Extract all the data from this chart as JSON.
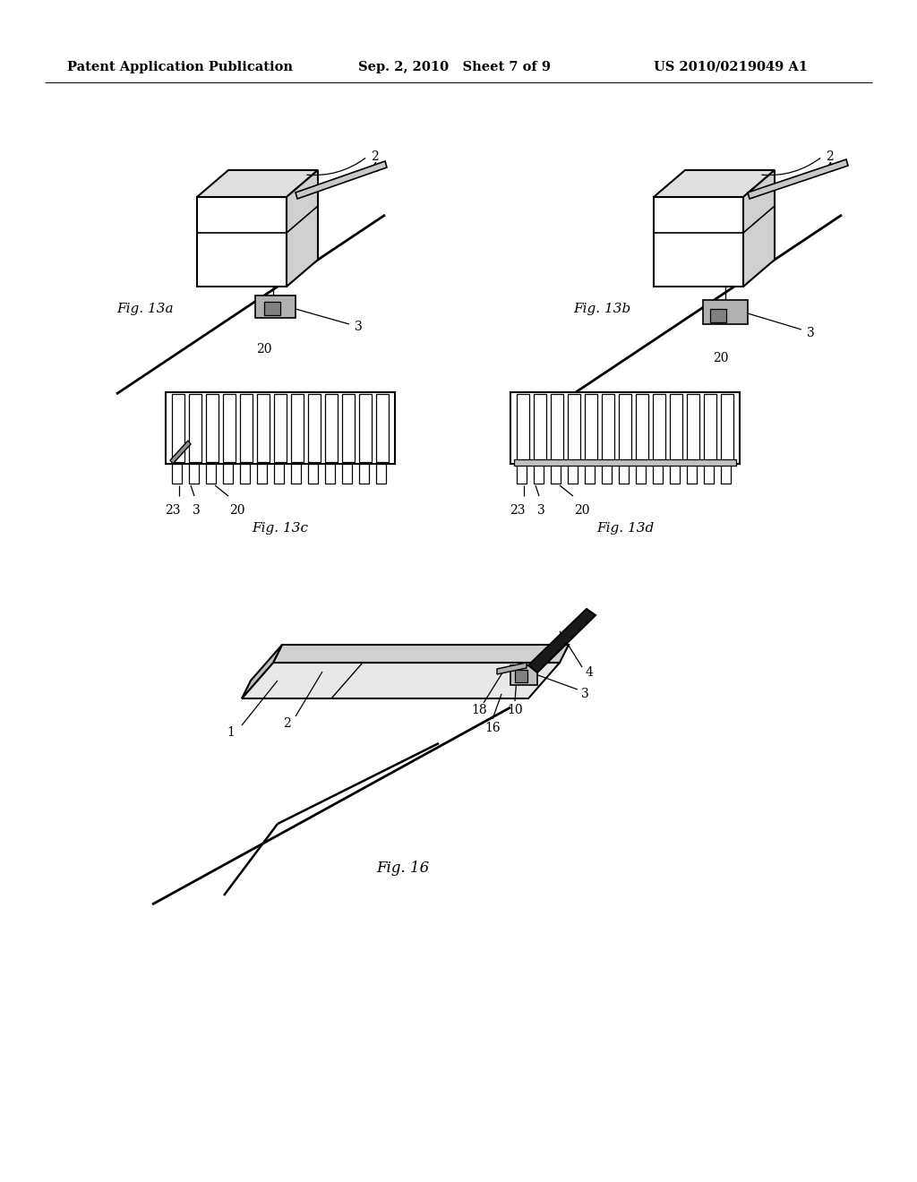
{
  "background_color": "#ffffff",
  "header_left": "Patent Application Publication",
  "header_center": "Sep. 2, 2010   Sheet 7 of 9",
  "header_right": "US 2010/0219049 A1",
  "header_fontsize": 10.5
}
